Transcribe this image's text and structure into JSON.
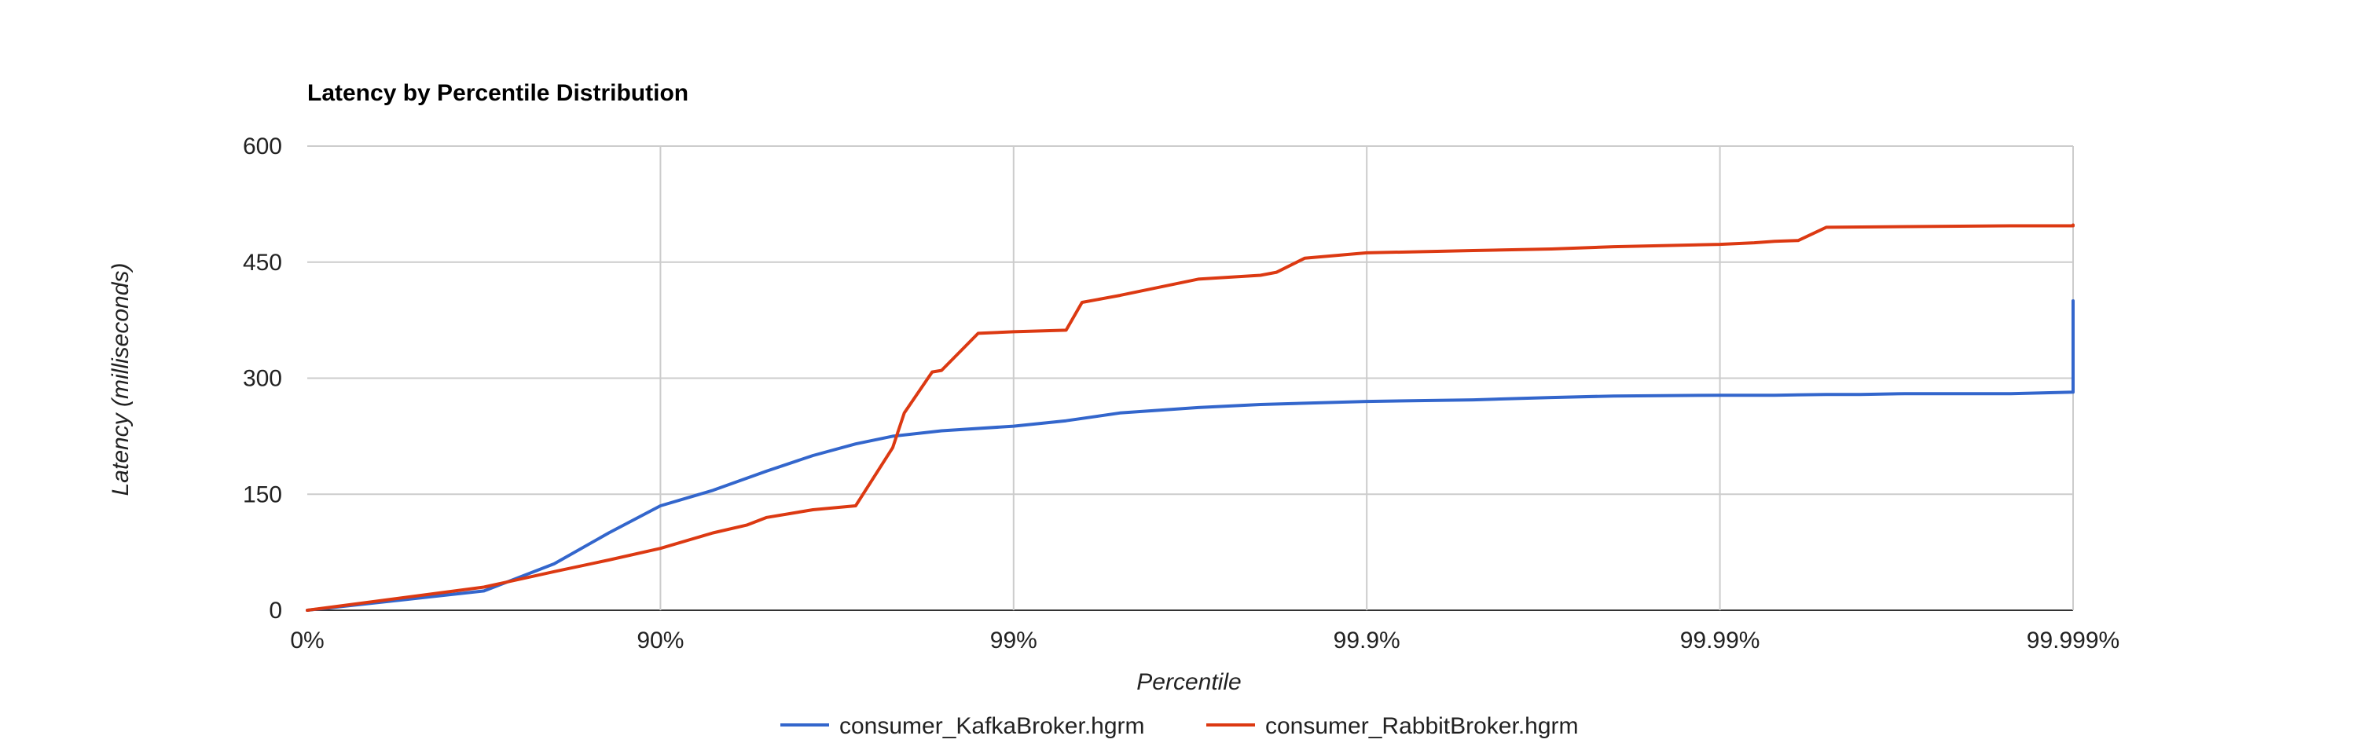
{
  "chart_data": {
    "type": "line",
    "title": "Latency by Percentile Distribution",
    "xlabel": "Percentile",
    "ylabel": "Latency (milliseconds)",
    "x_scale": "log-percentile",
    "x_ticks": [
      "0%",
      "90%",
      "99%",
      "99.9%",
      "99.99%",
      "99.999%"
    ],
    "y_ticks": [
      0,
      150,
      300,
      450,
      600
    ],
    "ylim": [
      0,
      600
    ],
    "grid": true,
    "legend_position": "bottom",
    "colors": {
      "grid": "#cccccc",
      "baseline": "#333333"
    },
    "series": [
      {
        "name": "consumer_KafkaBroker.hgrm",
        "color": "#3366cc",
        "x": [
          "0%",
          "68.4%",
          "80%",
          "86%",
          "90%",
          "92.9%",
          "95%",
          "96.3%",
          "97.2%",
          "97.8%",
          "98.4%",
          "99%",
          "99.29%",
          "99.5%",
          "99.7%",
          "99.8%",
          "99.9%",
          "99.95%",
          "99.97%",
          "99.98%",
          "99.99%",
          "99.993%",
          "99.995%",
          "99.996%",
          "99.997%",
          "99.998%",
          "99.9985%",
          "99.999%",
          "99.9991%"
        ],
        "y": [
          0,
          25,
          60,
          100,
          135,
          155,
          180,
          200,
          215,
          225,
          232,
          238,
          245,
          255,
          262,
          266,
          270,
          272,
          275,
          277,
          278,
          278,
          279,
          279,
          280,
          280,
          280,
          282,
          400
        ]
      },
      {
        "name": "consumer_RabbitBroker.hgrm",
        "color": "#dc3912",
        "x": [
          "0%",
          "68.4%",
          "80%",
          "86%",
          "90%",
          "92.9%",
          "94.3%",
          "95%",
          "96.3%",
          "97.2%",
          "97.8%",
          "97.96%",
          "98.3%",
          "98.4%",
          "98.74%",
          "99%",
          "99.29%",
          "99.36%",
          "99.5%",
          "99.7%",
          "99.8%",
          "99.82%",
          "99.85%",
          "99.9%",
          "99.95%",
          "99.97%",
          "99.98%",
          "99.99%",
          "99.992%",
          "99.993%",
          "99.994%",
          "99.995%",
          "99.9985%",
          "99.999%",
          "99.9991%"
        ],
        "y": [
          0,
          30,
          50,
          65,
          80,
          100,
          110,
          120,
          130,
          135,
          210,
          255,
          308,
          310,
          358,
          360,
          362,
          398,
          407,
          428,
          433,
          437,
          455,
          462,
          465,
          467,
          470,
          473,
          475,
          477,
          478,
          495,
          497,
          497,
          498
        ]
      }
    ]
  }
}
